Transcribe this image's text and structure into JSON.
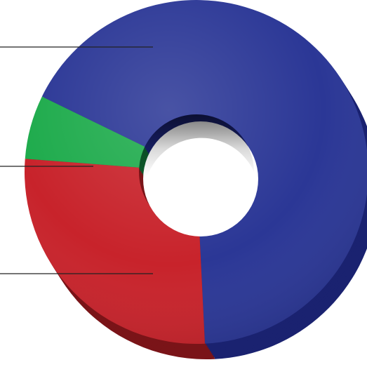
{
  "chart_data": {
    "type": "pie",
    "variant": "3d-donut",
    "categories": [
      "",
      "",
      ""
    ],
    "values": [
      67,
      27,
      6
    ],
    "colors": [
      "#2b3796",
      "#c8232b",
      "#1eab4c"
    ],
    "side_colors": [
      "#1a2270",
      "#7a1418",
      "#0d5a2b"
    ],
    "legend": "none",
    "leader_lines": true
  }
}
